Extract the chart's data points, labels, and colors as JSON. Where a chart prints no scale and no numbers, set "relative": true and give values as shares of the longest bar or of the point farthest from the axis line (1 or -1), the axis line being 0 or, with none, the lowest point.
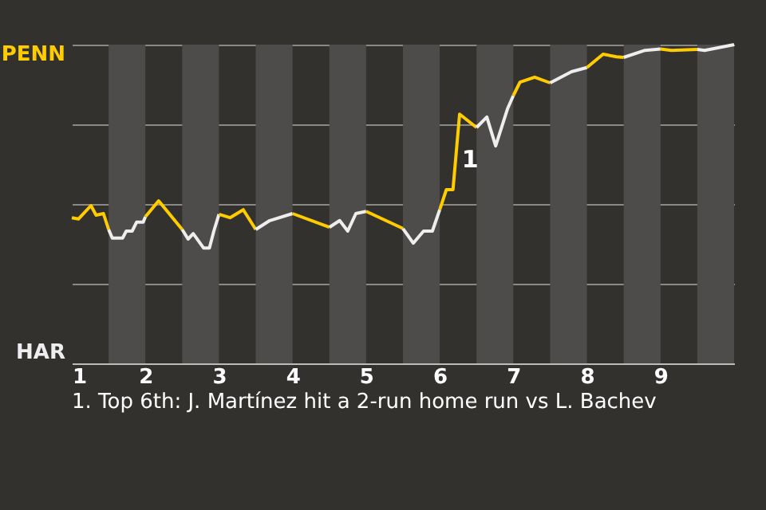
{
  "chart_data": {
    "type": "line",
    "relative": true,
    "series": [
      {
        "color": "#ffcc00",
        "x": [
          1,
          1.09,
          1.26,
          1.33,
          1.43,
          1.5
        ],
        "values": [
          0.457,
          0.453,
          0.495,
          0.465,
          0.47,
          0.42
        ]
      },
      {
        "color": "#eeeeee",
        "x": [
          1.5,
          1.55,
          1.69,
          1.74,
          1.82,
          1.88,
          1.97,
          2
        ],
        "values": [
          0.42,
          0.393,
          0.393,
          0.415,
          0.415,
          0.443,
          0.443,
          0.46
        ]
      },
      {
        "color": "#ffcc00",
        "x": [
          2,
          2.18,
          2.5
        ],
        "values": [
          0.46,
          0.51,
          0.42
        ]
      },
      {
        "color": "#eeeeee",
        "x": [
          2.5,
          2.58,
          2.65,
          2.79,
          2.87,
          2.93,
          3
        ],
        "values": [
          0.42,
          0.39,
          0.407,
          0.362,
          0.362,
          0.415,
          0.468
        ]
      },
      {
        "color": "#ffcc00",
        "x": [
          3,
          3.15,
          3.33,
          3.5
        ],
        "values": [
          0.468,
          0.457,
          0.482,
          0.42
        ]
      },
      {
        "color": "#eeeeee",
        "x": [
          3.5,
          3.69,
          4
        ],
        "values": [
          0.42,
          0.448,
          0.47
        ]
      },
      {
        "color": "#ffcc00",
        "x": [
          4,
          4.5
        ],
        "values": [
          0.47,
          0.427
        ]
      },
      {
        "color": "#eeeeee",
        "x": [
          4.5,
          4.64,
          4.75,
          4.86,
          5
        ],
        "values": [
          0.427,
          0.448,
          0.415,
          0.47,
          0.477
        ]
      },
      {
        "color": "#ffcc00",
        "x": [
          5,
          5.5
        ],
        "values": [
          0.477,
          0.423
        ]
      },
      {
        "color": "#eeeeee",
        "x": [
          5.5,
          5.64,
          5.78,
          5.9,
          6
        ],
        "values": [
          0.423,
          0.377,
          0.415,
          0.415,
          0.482
        ]
      },
      {
        "color": "#ffcc00",
        "x": [
          6,
          6.09,
          6.18,
          6.27,
          6.5
        ],
        "values": [
          0.482,
          0.545,
          0.545,
          0.782,
          0.74
        ]
      },
      {
        "color": "#eeeeee",
        "x": [
          6.5,
          6.64,
          6.76,
          6.92,
          7
        ],
        "values": [
          0.74,
          0.773,
          0.682,
          0.798,
          0.84
        ]
      },
      {
        "color": "#ffcc00",
        "x": [
          7,
          7.09,
          7.29,
          7.5
        ],
        "values": [
          0.84,
          0.882,
          0.898,
          0.88
        ]
      },
      {
        "color": "#eeeeee",
        "x": [
          7.5,
          7.79,
          8
        ],
        "values": [
          0.88,
          0.915,
          0.928
        ]
      },
      {
        "color": "#ffcc00",
        "x": [
          8,
          8.22,
          8.4,
          8.5
        ],
        "values": [
          0.928,
          0.97,
          0.962,
          0.96
        ]
      },
      {
        "color": "#eeeeee",
        "x": [
          8.5,
          8.79,
          9
        ],
        "values": [
          0.96,
          0.982,
          0.986
        ]
      },
      {
        "color": "#ffcc00",
        "x": [
          9,
          9.15,
          9.5
        ],
        "values": [
          0.986,
          0.982,
          0.985
        ]
      },
      {
        "color": "#eeeeee",
        "x": [
          9.5,
          9.6,
          10
        ],
        "values": [
          0.985,
          0.982,
          1
        ]
      }
    ],
    "xlim": [
      1,
      10
    ],
    "xticks": [
      1,
      2,
      3,
      4,
      5,
      6,
      7,
      8,
      9
    ],
    "grid": "y",
    "bands": [
      {
        "axis": "x",
        "from": 1.5,
        "to": 2,
        "color": "#4d4c4a"
      },
      {
        "axis": "x",
        "from": 2.5,
        "to": 3,
        "color": "#4d4c4a"
      },
      {
        "axis": "x",
        "from": 3.5,
        "to": 4,
        "color": "#4d4c4a"
      },
      {
        "axis": "x",
        "from": 4.5,
        "to": 5,
        "color": "#4d4c4a"
      },
      {
        "axis": "x",
        "from": 5.5,
        "to": 6,
        "color": "#4d4c4a"
      },
      {
        "axis": "x",
        "from": 6.5,
        "to": 7,
        "color": "#4d4c4a"
      },
      {
        "axis": "x",
        "from": 7.5,
        "to": 8,
        "color": "#4d4c4a"
      },
      {
        "axis": "x",
        "from": 8.5,
        "to": 9,
        "color": "#4d4c4a"
      },
      {
        "axis": "x",
        "from": 9.5,
        "to": 10,
        "color": "#4d4c4a"
      }
    ],
    "annotations": [
      "PENN",
      "HAR",
      {
        "text": "1",
        "x": 6.3,
        "y": 0.64
      },
      "1. Top 6th: J. Martínez hit a 2-run home run vs L. Bachev"
    ]
  }
}
